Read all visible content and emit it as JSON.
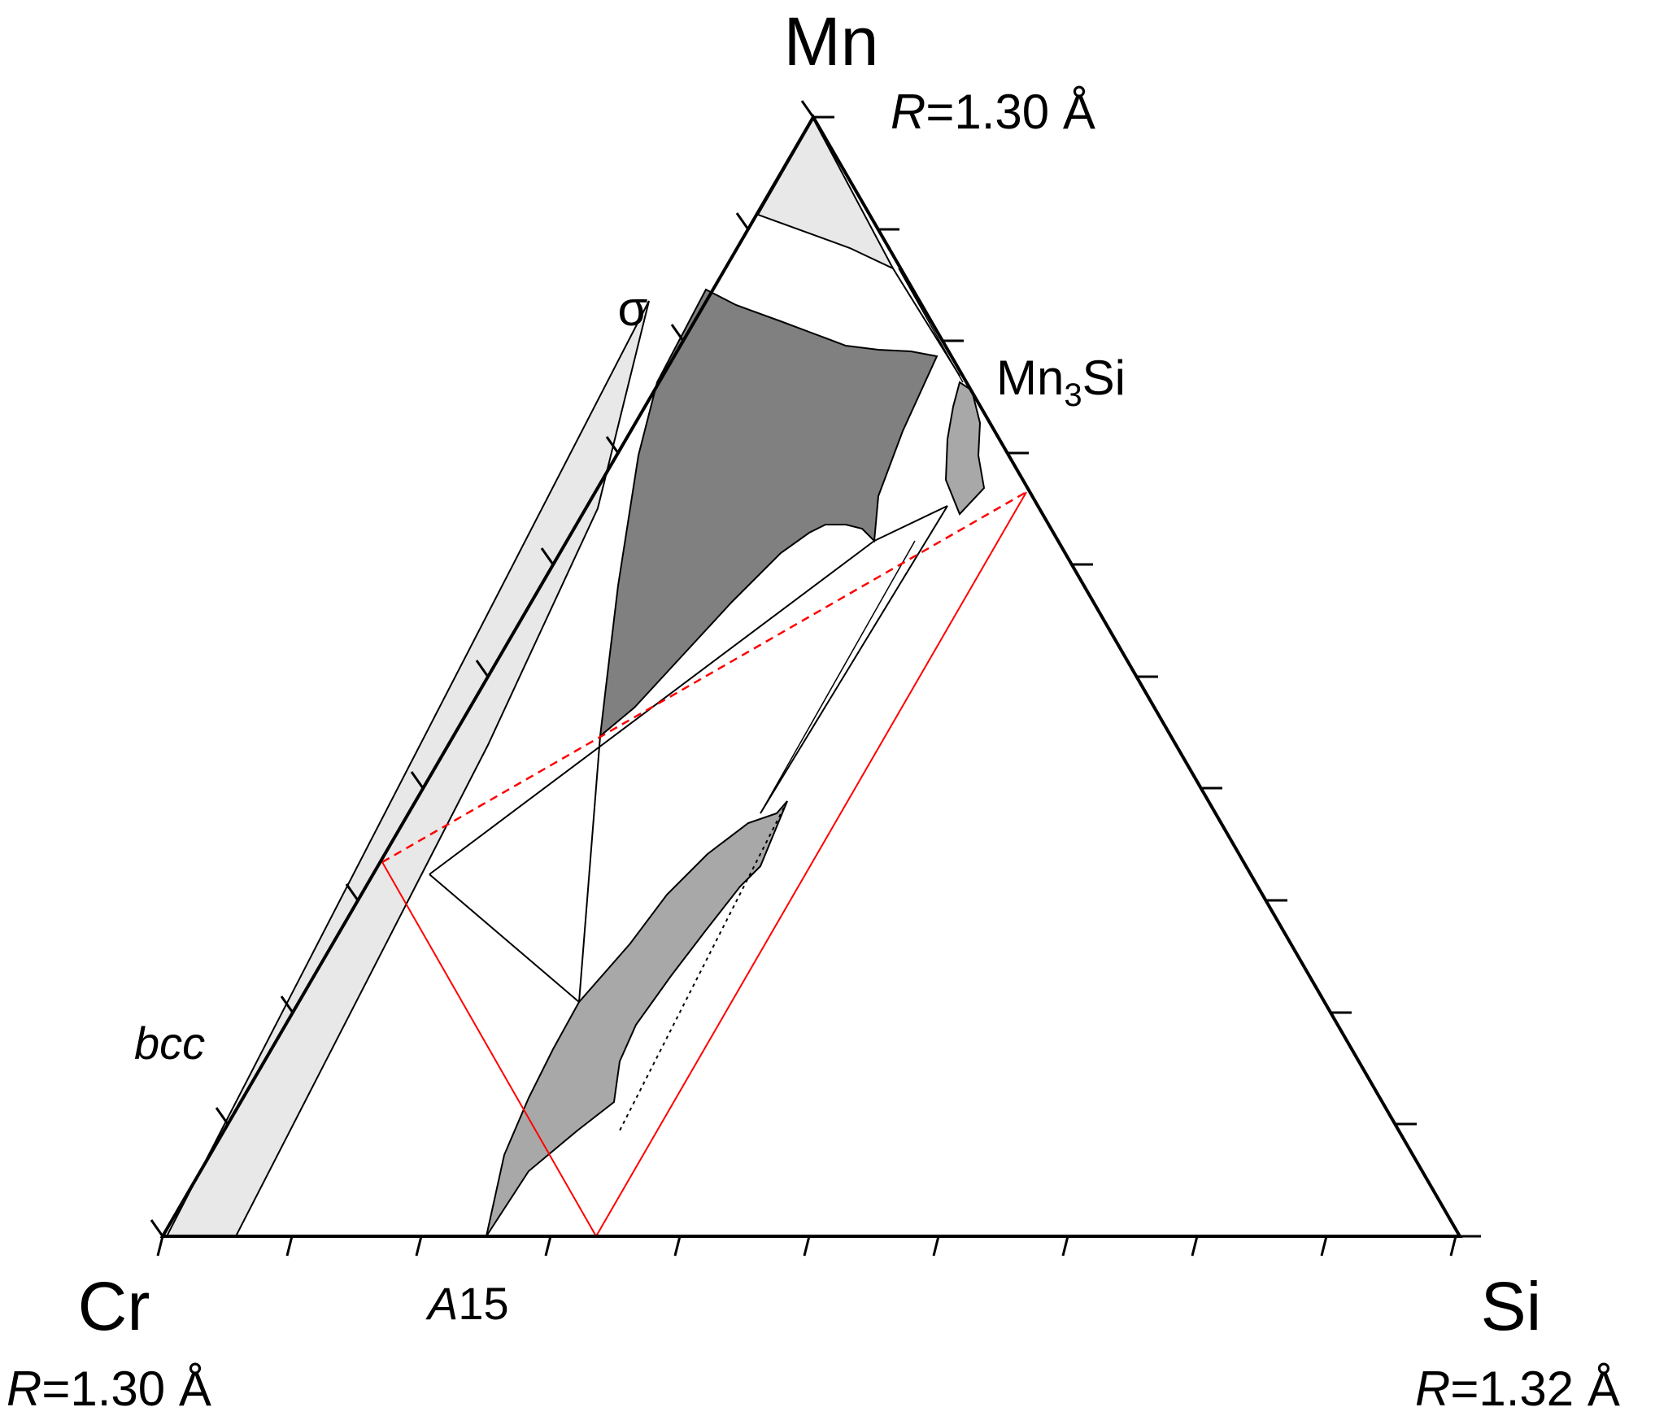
{
  "labels": {
    "mn": "Mn",
    "cr": "Cr",
    "si": "Si",
    "mn_r_prefix": "R",
    "mn_r_value": "=1.30 Å",
    "cr_r_prefix": "R",
    "cr_r_value": "=1.30 Å",
    "si_r_prefix": "R",
    "si_r_value": "=1.32 Å",
    "sigma": "σ",
    "mn3si_a": "Mn",
    "mn3si_sub": "3",
    "mn3si_b": "Si",
    "bcc": "bcc",
    "a15_prefix": "A",
    "a15_suffix": "15"
  },
  "colors": {
    "sigma_phase": "#808080",
    "a15_phase": "#a8a8a8",
    "mn3si_phase": "#a8a8a8",
    "solid_solution": "#e8e8e8",
    "frame": "#000000",
    "tie_triangle": "#ff0000"
  }
}
